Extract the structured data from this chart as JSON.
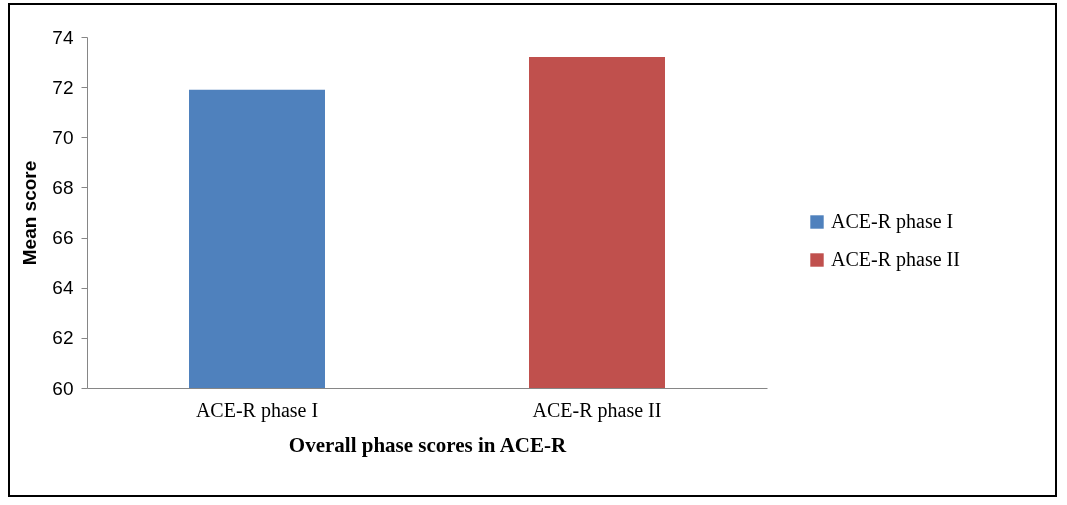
{
  "chart_data": {
    "type": "bar",
    "xlabel": "Overall phase scores in ACE-R",
    "ylabel": "Mean score",
    "categories": [
      "ACE-R phase I",
      "ACE-R phase II"
    ],
    "series": [
      {
        "name": "ACE-R phase I",
        "color": "#4f81bd",
        "values": [
          71.9,
          null
        ]
      },
      {
        "name": "ACE-R phase II",
        "color": "#c0504d",
        "values": [
          null,
          73.2
        ]
      }
    ],
    "stacked": true,
    "ylim": [
      60,
      74
    ],
    "yticks": [
      60,
      62,
      64,
      66,
      68,
      70,
      72,
      74
    ],
    "grid": false,
    "legend": "right"
  }
}
